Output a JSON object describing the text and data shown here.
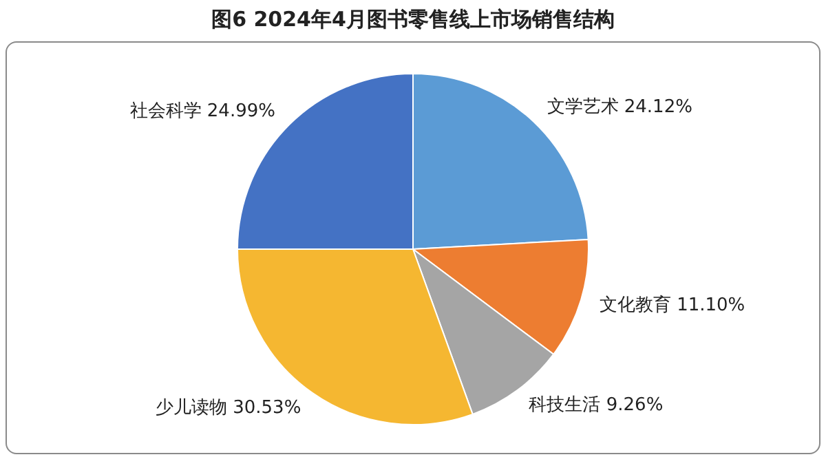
{
  "chart_data": {
    "type": "pie",
    "title": "图6  2024年4月图书零售线上市场销售结构",
    "categories": [
      "文学艺术",
      "文化教育",
      "科技生活",
      "少儿读物",
      "社会科学"
    ],
    "values": [
      24.12,
      11.1,
      9.26,
      30.53,
      24.99
    ],
    "value_labels": [
      "24.12%",
      "11.10%",
      "9.26%",
      "30.53%",
      "24.99%"
    ],
    "colors": [
      "#5b9bd5",
      "#ed7d31",
      "#a5a5a5",
      "#f5b731",
      "#4472c4"
    ],
    "legend": false
  }
}
